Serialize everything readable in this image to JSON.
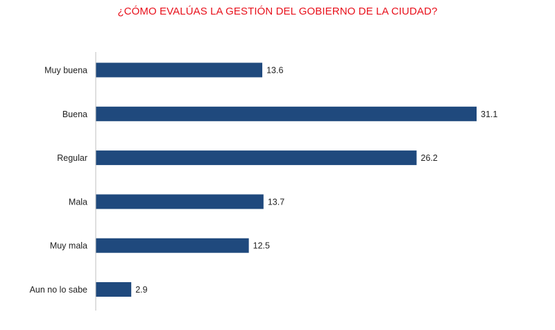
{
  "chart_data": {
    "type": "bar",
    "orientation": "horizontal",
    "title": "¿CÓMO EVALÚAS LA GESTIÓN DEL GOBIERNO DE LA CIUDAD?",
    "categories": [
      "Muy buena",
      "Buena",
      "Regular",
      "Mala",
      "Muy mala",
      "Aun no lo sabe"
    ],
    "values": [
      13.6,
      31.1,
      26.2,
      13.7,
      12.5,
      2.9
    ],
    "data_labels": [
      "13.6",
      "31.1",
      "26.2",
      "13.7",
      "12.5",
      "2.9"
    ],
    "xlim": [
      0,
      31.1
    ],
    "grid": false,
    "legend": "none",
    "colors": {
      "bar": "#1f497d",
      "title": "#e8101b",
      "axis": "#bfbfbf"
    }
  }
}
